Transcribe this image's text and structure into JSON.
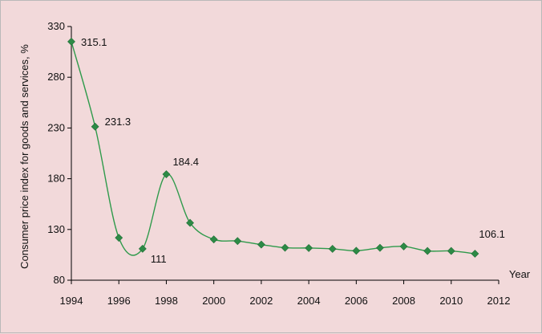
{
  "chart_data": {
    "type": "line",
    "xlabel": "Year",
    "ylabel": "Consumer price index for goods and services, %",
    "xlim": [
      1994,
      2012
    ],
    "ylim": [
      80,
      330
    ],
    "x_ticks": [
      1994,
      1996,
      1998,
      2000,
      2002,
      2004,
      2006,
      2008,
      2010,
      2012
    ],
    "y_ticks": [
      80,
      130,
      180,
      230,
      280,
      330
    ],
    "grid": false,
    "legend": "none",
    "series": [
      {
        "x": [
          1994,
          1995,
          1996,
          1997,
          1998,
          1999,
          2000,
          2001,
          2002,
          2003,
          2004,
          2005,
          2006,
          2007,
          2008,
          2009,
          2010,
          2011
        ],
        "values": [
          315.1,
          231.3,
          121.8,
          111,
          184.4,
          136.5,
          120.2,
          118.6,
          115.1,
          112,
          111.7,
          110.9,
          109,
          111.9,
          113.3,
          108.8,
          108.8,
          106.1
        ],
        "line_color": "#2f9a4b",
        "marker_color": "#2d8a46",
        "marker": "diamond"
      }
    ],
    "annotations": [
      {
        "x": 1994,
        "y": 315.1,
        "text": "315.1"
      },
      {
        "x": 1995,
        "y": 231.3,
        "text": "231.3"
      },
      {
        "x": 1997,
        "y": 111,
        "text": "111"
      },
      {
        "x": 1998,
        "y": 184.4,
        "text": "184.4"
      },
      {
        "x": 2011,
        "y": 106.1,
        "text": "106.1"
      }
    ]
  }
}
